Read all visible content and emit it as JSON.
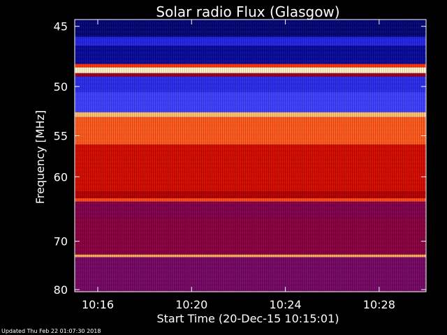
{
  "chart_data": {
    "type": "heatmap",
    "title": "Solar radio Flux (Glasgow)",
    "ylabel": "Frequency [MHz]",
    "xlabel": "Start Time (20-Dec-15 10:15:01)",
    "y_ticks": [
      45,
      50,
      55,
      60,
      70,
      80
    ],
    "y_range_mhz": [
      44.5,
      80.5
    ],
    "y_scale": "reciprocal",
    "x_ticks": [
      "10:16",
      "10:20",
      "10:24",
      "10:28"
    ],
    "x_range": [
      "10:15:01",
      "10:30:00"
    ],
    "colormap": [
      "#00003c",
      "#1010d0",
      "#4040ff",
      "#800050",
      "#b80000",
      "#ff2000",
      "#ff8030",
      "#ffd080",
      "#ffffe0"
    ],
    "frequency_bands_mhz": [
      {
        "from": 44.5,
        "to": 45.8,
        "intensity": 0.05
      },
      {
        "from": 45.8,
        "to": 46.5,
        "intensity": 0.18
      },
      {
        "from": 46.5,
        "to": 48.0,
        "intensity": 0.08
      },
      {
        "from": 48.0,
        "to": 48.3,
        "intensity": 0.65
      },
      {
        "from": 48.3,
        "to": 48.8,
        "intensity": 0.97
      },
      {
        "from": 48.8,
        "to": 49.1,
        "intensity": 0.45
      },
      {
        "from": 49.1,
        "to": 50.5,
        "intensity": 0.2
      },
      {
        "from": 50.5,
        "to": 52.5,
        "intensity": 0.25
      },
      {
        "from": 52.5,
        "to": 53.0,
        "intensity": 0.85
      },
      {
        "from": 53.0,
        "to": 56.0,
        "intensity": 0.7
      },
      {
        "from": 56.0,
        "to": 62.0,
        "intensity": 0.55
      },
      {
        "from": 62.0,
        "to": 63.0,
        "intensity": 0.5
      },
      {
        "from": 63.0,
        "to": 63.5,
        "intensity": 0.68
      },
      {
        "from": 63.5,
        "to": 66.0,
        "intensity": 0.38
      },
      {
        "from": 66.0,
        "to": 72.5,
        "intensity": 0.4
      },
      {
        "from": 72.5,
        "to": 73.0,
        "intensity": 0.82
      },
      {
        "from": 73.0,
        "to": 80.5,
        "intensity": 0.36
      }
    ]
  },
  "footer": {
    "updated": "Updated Thu Feb 22 01:07:30 2018"
  }
}
